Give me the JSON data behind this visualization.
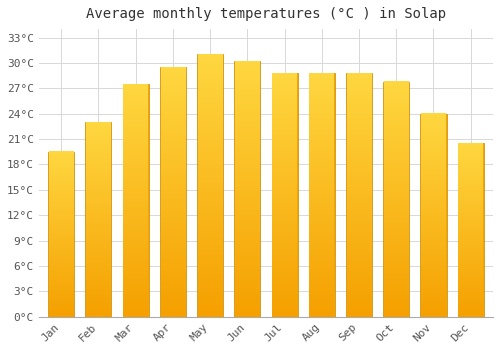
{
  "months": [
    "Jan",
    "Feb",
    "Mar",
    "Apr",
    "May",
    "Jun",
    "Jul",
    "Aug",
    "Sep",
    "Oct",
    "Nov",
    "Dec"
  ],
  "temperatures": [
    19.5,
    23.0,
    27.5,
    29.5,
    31.0,
    30.2,
    28.8,
    28.8,
    28.8,
    27.8,
    24.0,
    20.5
  ],
  "bar_color": "#FFA500",
  "bar_edge_color": "#CC7700",
  "title": "Average monthly temperatures (°C ) in Solap",
  "ylim": [
    0,
    34
  ],
  "ytick_step": 3,
  "background_color": "#ffffff",
  "grid_color": "#d8d8d8",
  "title_fontsize": 10,
  "tick_fontsize": 8,
  "bar_width": 0.7,
  "gradient_bottom": "#F5A623",
  "gradient_top": "#FFD966"
}
